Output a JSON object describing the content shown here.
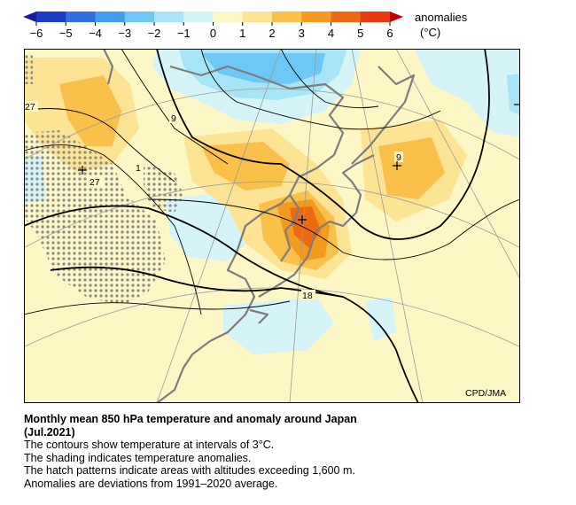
{
  "legend": {
    "title": "anomalies",
    "unit": "(°C)",
    "ticks": [
      "−6",
      "−5",
      "−4",
      "−3",
      "−2",
      "−1",
      "0",
      "1",
      "2",
      "3",
      "4",
      "5",
      "6"
    ],
    "colors": [
      "#1a3cc8",
      "#2f6fe0",
      "#3f9ef0",
      "#6ec8f5",
      "#a8e4f7",
      "#d4f4f8",
      "#fdf7c6",
      "#fde394",
      "#f9c04a",
      "#f49a1e",
      "#ee6a10",
      "#e83a0c"
    ]
  },
  "map": {
    "contour_labels": [
      "27",
      "9",
      "1",
      "27",
      "9",
      "18"
    ],
    "credit": "CPD/JMA"
  },
  "caption": {
    "title_line1": "Monthly mean 850 hPa temperature and anomaly around Japan",
    "title_line2": "(Jul.2021)",
    "line1": "The contours show temperature at intervals of 3°C.",
    "line2": "The shading indicates temperature anomalies.",
    "line3": "The hatch patterns indicate areas with altitudes exceeding 1,600 m.",
    "line4": "Anomalies are deviations from 1991–2020 average."
  }
}
